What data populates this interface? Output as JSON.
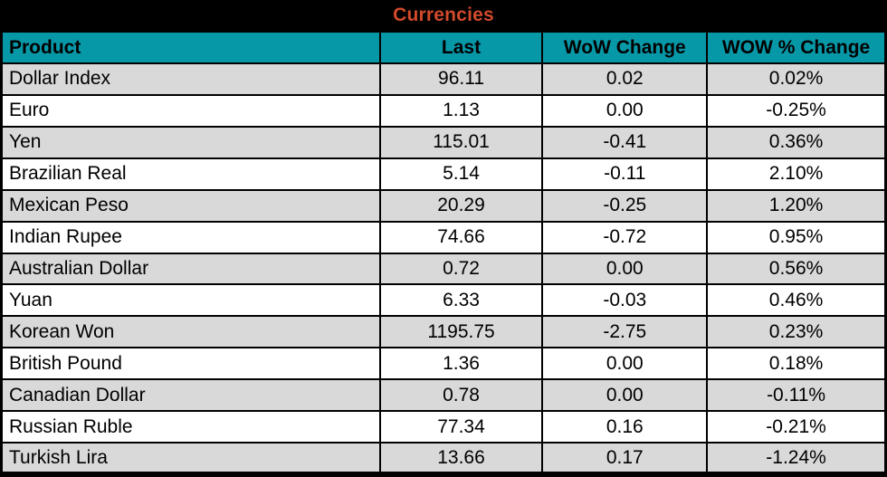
{
  "title": "Currencies",
  "colors": {
    "title_text": "#d14a2b",
    "title_bg": "#000000",
    "header_bg": "#0798a8",
    "row_alt_bg": "#d9d9d9",
    "row_bg": "#ffffff",
    "border": "#000000",
    "text": "#000000"
  },
  "columns": {
    "product": "Product",
    "last": "Last",
    "wow_change": "WoW Change",
    "wow_pct_change": "WOW % Change"
  },
  "rows": [
    {
      "product": "Dollar Index",
      "last": "96.11",
      "wow_change": "0.02",
      "wow_pct_change": "0.02%"
    },
    {
      "product": "Euro",
      "last": "1.13",
      "wow_change": "0.00",
      "wow_pct_change": "-0.25%"
    },
    {
      "product": "Yen",
      "last": "115.01",
      "wow_change": "-0.41",
      "wow_pct_change": "0.36%"
    },
    {
      "product": "Brazilian Real",
      "last": "5.14",
      "wow_change": "-0.11",
      "wow_pct_change": "2.10%"
    },
    {
      "product": "Mexican Peso",
      "last": "20.29",
      "wow_change": "-0.25",
      "wow_pct_change": "1.20%"
    },
    {
      "product": "Indian Rupee",
      "last": "74.66",
      "wow_change": "-0.72",
      "wow_pct_change": "0.95%"
    },
    {
      "product": "Australian Dollar",
      "last": "0.72",
      "wow_change": "0.00",
      "wow_pct_change": "0.56%"
    },
    {
      "product": "Yuan",
      "last": "6.33",
      "wow_change": "-0.03",
      "wow_pct_change": "0.46%"
    },
    {
      "product": "Korean Won",
      "last": "1195.75",
      "wow_change": "-2.75",
      "wow_pct_change": "0.23%"
    },
    {
      "product": "British Pound",
      "last": "1.36",
      "wow_change": "0.00",
      "wow_pct_change": "0.18%"
    },
    {
      "product": "Canadian Dollar",
      "last": "0.78",
      "wow_change": "0.00",
      "wow_pct_change": "-0.11%"
    },
    {
      "product": "Russian Ruble",
      "last": "77.34",
      "wow_change": "0.16",
      "wow_pct_change": "-0.21%"
    },
    {
      "product": "Turkish Lira",
      "last": "13.66",
      "wow_change": "0.17",
      "wow_pct_change": "-1.24%"
    }
  ]
}
